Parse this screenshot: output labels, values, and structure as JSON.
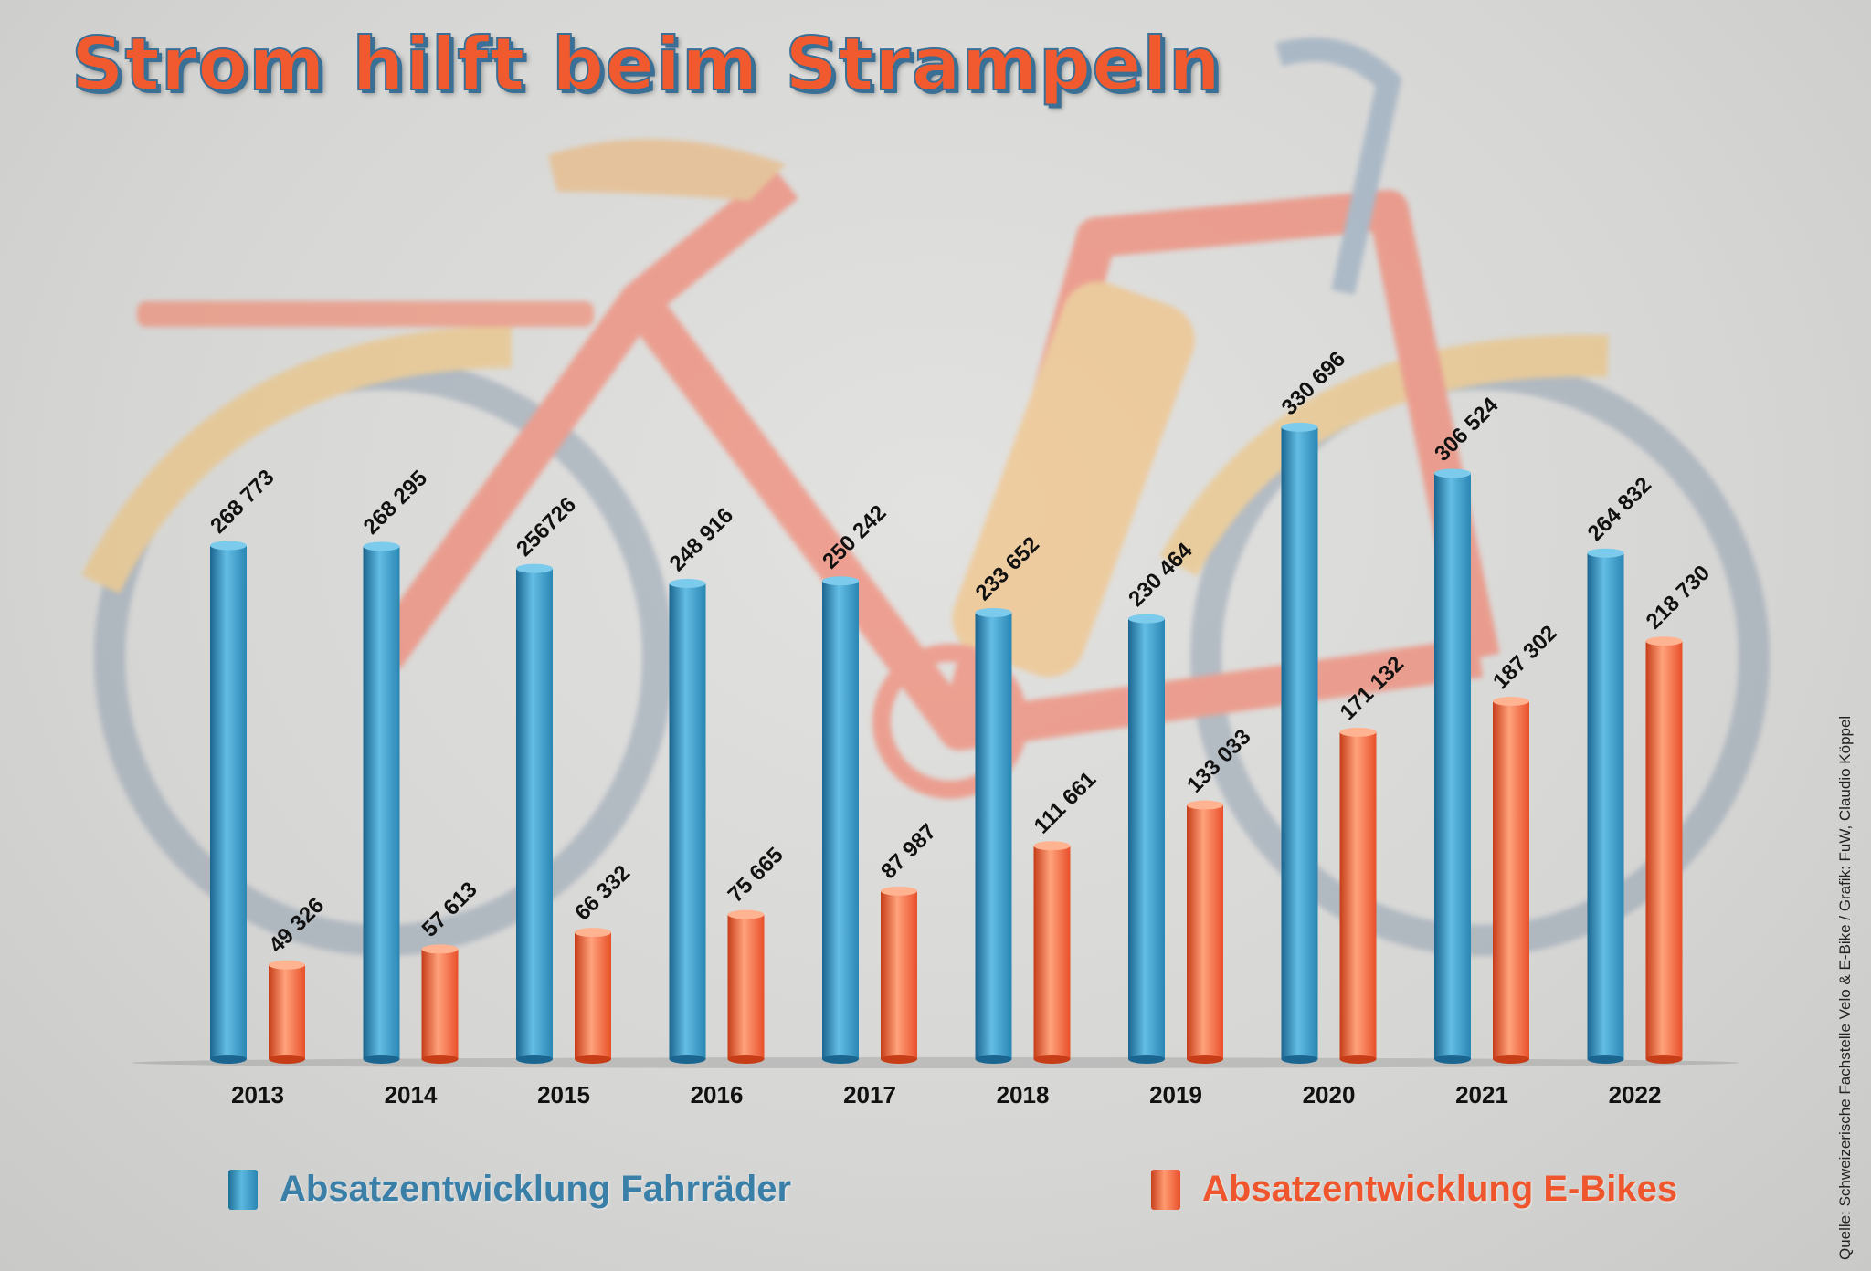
{
  "title": "Strom hilft beim Strampeln",
  "source": "Quelle: Schweizerische Fachstelle Velo & E-Bike / Grafik: FuW, Claudio Köppel",
  "colors": {
    "fahrraeder": "#3494be",
    "ebikes": "#f0562e"
  },
  "chart_data": {
    "type": "bar",
    "title": "Strom hilft beim Strampeln",
    "xlabel": "",
    "ylabel": "",
    "ylim": [
      0,
      350000
    ],
    "categories": [
      "2013",
      "2014",
      "2015",
      "2016",
      "2017",
      "2018",
      "2019",
      "2020",
      "2021",
      "2022"
    ],
    "series": [
      {
        "name": "Absatzentwicklung Fahrräder",
        "color": "#3494be",
        "values": [
          268773,
          268295,
          256726,
          248916,
          250242,
          233652,
          230464,
          330696,
          306524,
          264832
        ],
        "labels": [
          "268 773",
          "268 295",
          "256726",
          "248 916",
          "250 242",
          "233 652",
          "230 464",
          "330 696",
          "306 524",
          "264 832"
        ]
      },
      {
        "name": "Absatzentwicklung E-Bikes",
        "color": "#f0562e",
        "values": [
          49326,
          57613,
          66332,
          75665,
          87987,
          111661,
          133033,
          171132,
          187302,
          218730
        ],
        "labels": [
          "49 326",
          "57 613",
          "66 332",
          "75 665",
          "87 987",
          "111 661",
          "133 033",
          "171 132",
          "187 302",
          "218 730"
        ]
      }
    ],
    "legend": "bottom"
  }
}
